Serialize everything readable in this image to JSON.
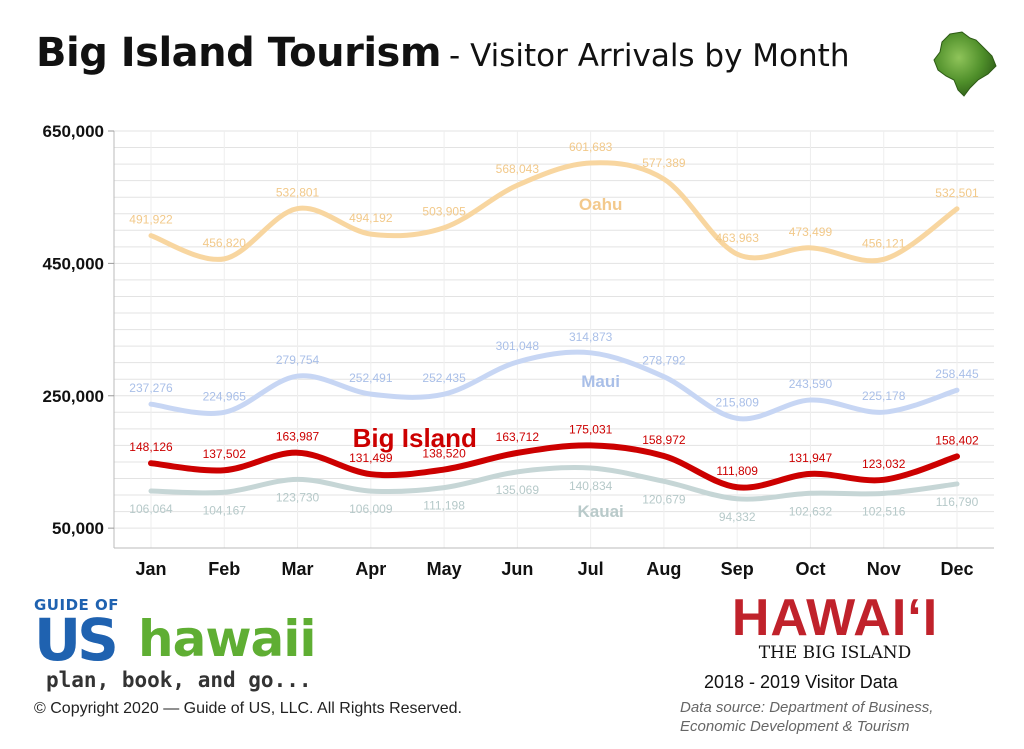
{
  "header": {
    "title": "Big Island Tourism",
    "subtitle": "- Visitor Arrivals by Month",
    "icon": "big-island-map-icon"
  },
  "chart_data": {
    "type": "line",
    "categories": [
      "Jan",
      "Feb",
      "Mar",
      "Apr",
      "May",
      "Jun",
      "Jul",
      "Aug",
      "Sep",
      "Oct",
      "Nov",
      "Dec"
    ],
    "y_ticks": [
      "650,000",
      "450,000",
      "250,000",
      "50,000"
    ],
    "ylim": [
      20000,
      650000
    ],
    "grid": true,
    "series": [
      {
        "name": "Oahu",
        "color": "#f8d6a0",
        "values": [
          491922,
          456820,
          532801,
          494192,
          503905,
          568043,
          601683,
          577389,
          463963,
          473499,
          456121,
          532501
        ],
        "labels": [
          "491,922",
          "456,820",
          "532,801",
          "494,192",
          "503,905",
          "568,043",
          "601,683",
          "577,389",
          "463,963",
          "473,499",
          "456,121",
          "532,501"
        ]
      },
      {
        "name": "Maui",
        "color": "#c7d6f4",
        "values": [
          237276,
          224965,
          279754,
          252491,
          252435,
          301048,
          314873,
          278792,
          215809,
          243590,
          225178,
          258445
        ],
        "labels": [
          "237,276",
          "224,965",
          "279,754",
          "252,491",
          "252,435",
          "301,048",
          "314,873",
          "278,792",
          "215,809",
          "243,590",
          "225,178",
          "258,445"
        ]
      },
      {
        "name": "Big Island",
        "color": "#cc0000",
        "values": [
          148126,
          137502,
          163987,
          131499,
          138520,
          163712,
          175031,
          158972,
          111809,
          131947,
          123032,
          158402
        ],
        "labels": [
          "148,126",
          "137,502",
          "163,987",
          "131,499",
          "138,520",
          "163,712",
          "175,031",
          "158,972",
          "111,809",
          "131,947",
          "123,032",
          "158,402"
        ]
      },
      {
        "name": "Kauai",
        "color": "#c6d6d6",
        "values": [
          106064,
          104167,
          123730,
          106009,
          111198,
          135069,
          140834,
          120679,
          94332,
          102632,
          102516,
          116790
        ],
        "labels": [
          "106,064",
          "104,167",
          "123,730",
          "106,009",
          "111,198",
          "135,069",
          "140,834",
          "120,679",
          "94,332",
          "102,632",
          "102,516",
          "116,790"
        ]
      }
    ]
  },
  "footer": {
    "logo_top": "GUIDE OF",
    "logo_us": "US",
    "logo_hawaii": "hawaii",
    "tagline": "plan, book, and go...",
    "copyright": "© Copyright 2020 — Guide of US, LLC. All Rights Reserved.",
    "brand_title": "HAWAIʻI",
    "brand_subtitle": "THE BIG ISLAND",
    "visitor_data": "2018 - 2019 Visitor Data",
    "source_line1": "Data source: Department of Business,",
    "source_line2": "Economic Development & Tourism"
  }
}
